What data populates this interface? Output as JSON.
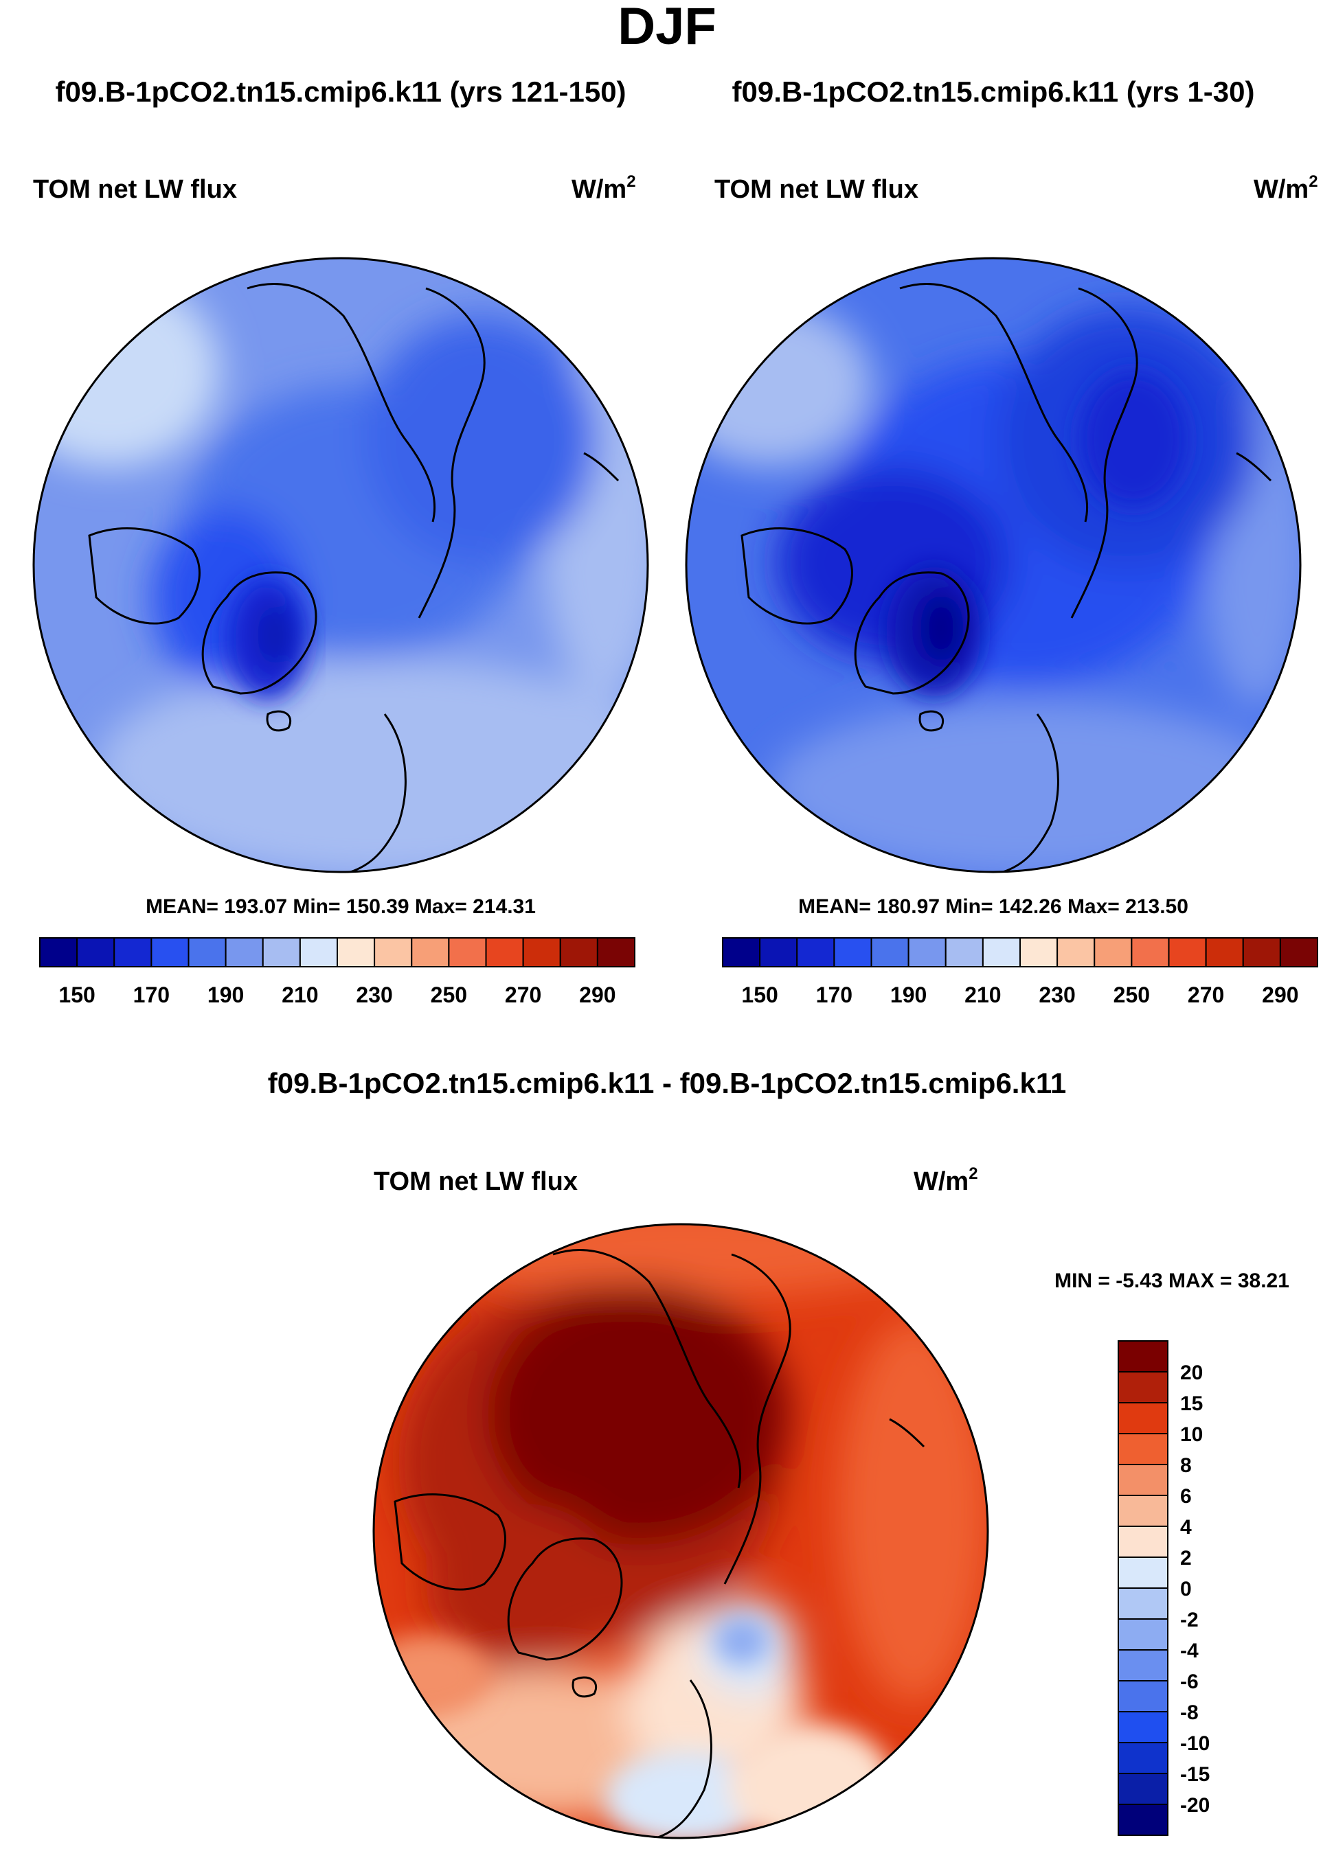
{
  "chart_data": {
    "type": "heatmap",
    "season_title": "DJF",
    "panels": [
      {
        "id": "case1",
        "case_title": "f09.B-1pCO2.tn15.cmip6.k11 (yrs 121-150)",
        "variable": "TOM net LW flux",
        "units_base": "W/m",
        "units_exp": "2",
        "stats": "MEAN= 193.07  Min= 150.39  Max= 214.31",
        "mean": 193.07,
        "min": 150.39,
        "max": 214.31,
        "projection": "north polar stereographic",
        "field_pattern": "blue shades 150-210; darkest over Greenland interior; lightest at low latitudes"
      },
      {
        "id": "case2",
        "case_title": "f09.B-1pCO2.tn15.cmip6.k11 (yrs 1-30)",
        "variable": "TOM net LW flux",
        "units_base": "W/m",
        "units_exp": "2",
        "stats": "MEAN= 180.97  Min= 142.26  Max= 213.50",
        "mean": 180.97,
        "min": 142.26,
        "max": 213.5,
        "projection": "north polar stereographic",
        "field_pattern": "darker blue overall; darkest over Greenland and Siberia"
      },
      {
        "id": "diff",
        "case_title": "f09.B-1pCO2.tn15.cmip6.k11 - f09.B-1pCO2.tn15.cmip6.k11",
        "variable": "TOM net LW flux",
        "units_base": "W/m",
        "units_exp": "2",
        "stats": "MIN =  -5.43 MAX =  38.21",
        "min": -5.43,
        "max": 38.21,
        "projection": "north polar stereographic",
        "field_pattern": "strong positive (>20) over central Arctic; weak/negative over Nordic seas and N. Europe"
      }
    ],
    "colorbar_main": {
      "orientation": "horizontal",
      "colors": [
        "#00008b",
        "#0a14b4",
        "#1428d2",
        "#2850f0",
        "#4a73ec",
        "#7897ee",
        "#a7bdf2",
        "#d7e6fb",
        "#fde7d4",
        "#fbc5a4",
        "#f79f77",
        "#f2704b",
        "#e7451f",
        "#cc2d0a",
        "#9e1606",
        "#7a0404"
      ],
      "tick_labels": [
        "150",
        "170",
        "190",
        "210",
        "230",
        "250",
        "270",
        "290"
      ]
    },
    "colorbar_diff": {
      "orientation": "vertical",
      "colors": [
        "#7a0000",
        "#b0200a",
        "#e03a10",
        "#ef6030",
        "#f39068",
        "#f8b998",
        "#fde2d0",
        "#d9e8fb",
        "#b0c8f5",
        "#8dacf2",
        "#6a8ff0",
        "#4a73ec",
        "#1f4ff0",
        "#0f33cc",
        "#0a1fa8",
        "#00007a"
      ],
      "tick_labels": [
        "20",
        "15",
        "10",
        "8",
        "6",
        "4",
        "2",
        "0",
        "-2",
        "-4",
        "-6",
        "-8",
        "-10",
        "-15",
        "-20"
      ]
    }
  }
}
